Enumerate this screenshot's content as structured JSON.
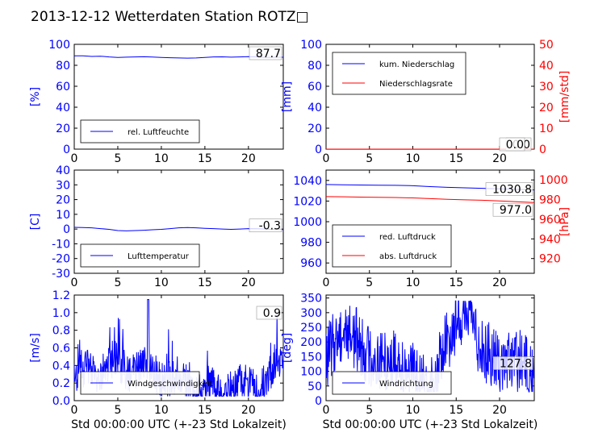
{
  "figure": {
    "title": "2013-12-12 Wetterdaten Station ROTZ□"
  },
  "colors": {
    "primary": "#0000ff",
    "secondary": "#ff0000",
    "axis": "#000000"
  },
  "chart_data": [
    {
      "id": "humidity",
      "type": "line",
      "x_range": [
        0,
        24
      ],
      "x_ticks": [
        0,
        5,
        10,
        15,
        20
      ],
      "ylim": [
        0,
        100
      ],
      "y_ticks": [
        0,
        20,
        40,
        60,
        80,
        100
      ],
      "ylabel": "[%]",
      "xlabel": "",
      "series": [
        {
          "name": "rel. Luftfeuchte",
          "color": "#0000ff",
          "axis": "left",
          "x": [
            0,
            1,
            2,
            3,
            4,
            5,
            6,
            7,
            8,
            9,
            10,
            11,
            12,
            13,
            14,
            15,
            16,
            17,
            18,
            19,
            20,
            21,
            22,
            23,
            24
          ],
          "y": [
            89,
            89,
            88.5,
            88.7,
            88,
            87.5,
            87.8,
            88,
            88.2,
            87.9,
            87.5,
            87.2,
            87,
            86.8,
            87,
            87.5,
            88,
            88.1,
            87.8,
            88,
            88.3,
            88,
            87.5,
            87.7,
            87.7
          ]
        }
      ],
      "annotation": "87.7",
      "legend_position": "lower-left"
    },
    {
      "id": "precip",
      "type": "line",
      "x_range": [
        0,
        24
      ],
      "x_ticks": [
        0,
        5,
        10,
        15,
        20
      ],
      "ylim": [
        0,
        100
      ],
      "y_ticks": [
        0,
        20,
        40,
        60,
        80,
        100
      ],
      "ylabel": "[mm]",
      "y2lim": [
        0,
        50
      ],
      "y2_ticks": [
        0,
        10,
        20,
        30,
        40,
        50
      ],
      "y2label": "[mm/std]",
      "series": [
        {
          "name": "kum. Niederschlag",
          "color": "#0000ff",
          "axis": "left",
          "x": [
            0,
            24
          ],
          "y": [
            0,
            0
          ]
        },
        {
          "name": "Niederschlagsrate",
          "color": "#ff0000",
          "axis": "right",
          "x": [
            0,
            24
          ],
          "y": [
            0,
            0
          ]
        }
      ],
      "annotation": "0.0",
      "annotation2": "0.0",
      "legend_position": "upper-left"
    },
    {
      "id": "temperature",
      "type": "line",
      "x_range": [
        0,
        24
      ],
      "x_ticks": [
        0,
        5,
        10,
        15,
        20
      ],
      "ylim": [
        -30,
        40
      ],
      "y_ticks": [
        -30,
        -20,
        -10,
        0,
        10,
        20,
        30,
        40
      ],
      "ylabel": "[C]",
      "series": [
        {
          "name": "Lufttemperatur",
          "color": "#0000ff",
          "axis": "left",
          "x": [
            0,
            1,
            2,
            3,
            4,
            5,
            6,
            7,
            8,
            9,
            10,
            11,
            12,
            13,
            14,
            15,
            16,
            17,
            18,
            19,
            20,
            21,
            22,
            23,
            24
          ],
          "y": [
            1.2,
            1.0,
            0.8,
            0.3,
            -0.2,
            -1.0,
            -1.2,
            -1.0,
            -0.8,
            -0.5,
            -0.2,
            0.3,
            0.8,
            1.0,
            0.8,
            0.5,
            0.3,
            0.0,
            -0.2,
            0.0,
            0.3,
            0.2,
            0.0,
            -0.3,
            -0.3
          ]
        }
      ],
      "annotation": "-0.3",
      "legend_position": "lower-left"
    },
    {
      "id": "pressure",
      "type": "line",
      "x_range": [
        0,
        24
      ],
      "x_ticks": [
        0,
        5,
        10,
        15,
        20
      ],
      "ylim": [
        950,
        1050
      ],
      "y_ticks": [
        960,
        980,
        1000,
        1020,
        1040
      ],
      "ylabel": "",
      "y2lim": [
        905,
        1010
      ],
      "y2_ticks": [
        920,
        940,
        960,
        980,
        1000
      ],
      "y2label": "[hPa]",
      "series": [
        {
          "name": "red. Luftdruck",
          "color": "#0000ff",
          "axis": "left",
          "x": [
            0,
            2,
            4,
            6,
            8,
            10,
            12,
            14,
            16,
            18,
            20,
            22,
            24
          ],
          "y": [
            1036,
            1035.7,
            1035.5,
            1035.4,
            1035.3,
            1034.9,
            1034,
            1033.3,
            1032.8,
            1032.3,
            1031.8,
            1031.2,
            1030.8
          ]
        },
        {
          "name": "abs. Luftdruck",
          "color": "#ff0000",
          "axis": "right",
          "x": [
            0,
            2,
            4,
            6,
            8,
            10,
            12,
            14,
            16,
            18,
            20,
            22,
            24
          ],
          "y": [
            983,
            982.8,
            982.5,
            982.3,
            982.1,
            981.7,
            981,
            980.3,
            979.8,
            979.3,
            978.6,
            977.8,
            977.0
          ]
        }
      ],
      "annotation": "1030.8",
      "annotation2": "977.0",
      "legend_position": "lower-left"
    },
    {
      "id": "windspeed",
      "type": "line",
      "x_range": [
        0,
        24
      ],
      "x_ticks": [
        0,
        5,
        10,
        15,
        20
      ],
      "ylim": [
        0,
        1.2
      ],
      "y_ticks": [
        0.0,
        0.2,
        0.4,
        0.6,
        0.8,
        1.0,
        1.2
      ],
      "ylabel": "[m/s]",
      "xlabel": "Std 00:00:00 UTC (+-23 Std Lokalzeit)",
      "series": [
        {
          "name": "Windgeschwindigkeit",
          "color": "#0000ff",
          "axis": "left",
          "sampled": {
            "min": 0.05,
            "max": 1.15,
            "mean": 0.35,
            "points": 500
          }
        }
      ],
      "annotation": "0.9",
      "legend_position": "lower-left"
    },
    {
      "id": "winddir",
      "type": "line",
      "x_range": [
        0,
        24
      ],
      "x_ticks": [
        0,
        5,
        10,
        15,
        20
      ],
      "ylim": [
        0,
        360
      ],
      "y_ticks": [
        0,
        50,
        100,
        150,
        200,
        250,
        300,
        350
      ],
      "ylabel": "[deg]",
      "xlabel": "Std 00:00:00 UTC (+-23 Std Lokalzeit)",
      "series": [
        {
          "name": "Windrichtung",
          "color": "#0000ff",
          "axis": "left",
          "sampled": {
            "min": 30,
            "max": 340,
            "mean": 160,
            "points": 500
          }
        }
      ],
      "annotation": "127.8",
      "legend_position": "lower-left"
    }
  ]
}
